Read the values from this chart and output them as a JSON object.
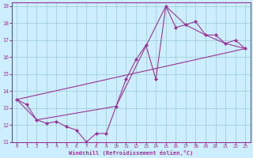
{
  "xlabel": "Windchill (Refroidissement éolien,°C)",
  "bg_color": "#cceeff",
  "line_color": "#993399",
  "grid_color": "#99cccc",
  "xlim": [
    -0.5,
    23.5
  ],
  "ylim": [
    11,
    19.2
  ],
  "xticks": [
    0,
    1,
    2,
    3,
    4,
    5,
    6,
    7,
    8,
    9,
    10,
    11,
    12,
    13,
    14,
    15,
    16,
    17,
    18,
    19,
    20,
    21,
    22,
    23
  ],
  "yticks": [
    11,
    12,
    13,
    14,
    15,
    16,
    17,
    18,
    19
  ],
  "line1_x": [
    0,
    1,
    2,
    3,
    4,
    5,
    6,
    7,
    8,
    9,
    10,
    11,
    12,
    13,
    14,
    15,
    16,
    17,
    18,
    19,
    20,
    21,
    22,
    23
  ],
  "line1_y": [
    13.5,
    13.2,
    12.3,
    12.1,
    12.2,
    11.9,
    11.7,
    11.0,
    11.5,
    11.5,
    13.1,
    14.7,
    15.85,
    16.7,
    14.7,
    19.0,
    17.75,
    17.9,
    18.1,
    17.3,
    17.3,
    16.8,
    17.0,
    16.5
  ],
  "line2_x": [
    0,
    2,
    10,
    15,
    17,
    19,
    21,
    23
  ],
  "line2_y": [
    13.5,
    12.3,
    13.1,
    19.0,
    17.9,
    17.3,
    16.8,
    16.5
  ],
  "line3_x": [
    0,
    23
  ],
  "line3_y": [
    13.5,
    16.5
  ]
}
